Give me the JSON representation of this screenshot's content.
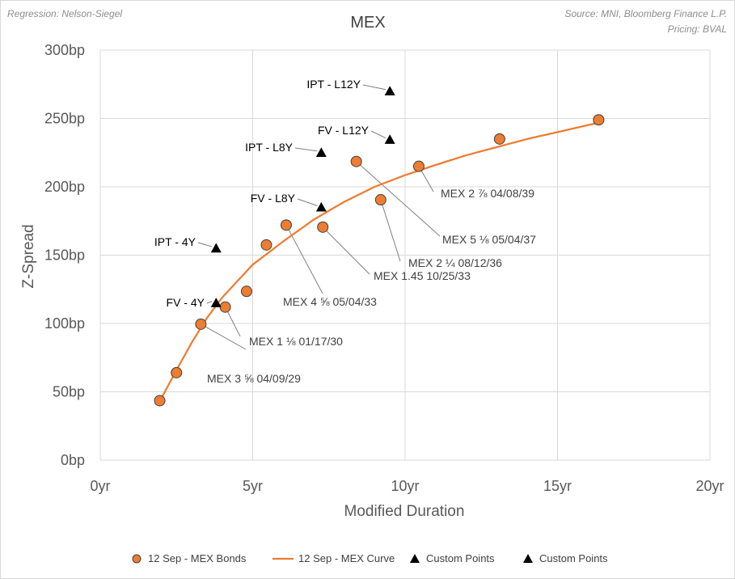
{
  "chart_data": {
    "type": "scatter",
    "title": "MEX",
    "notes": {
      "regression": "Regression: Nelson-Siegel",
      "source": "Source: MNI, Bloomberg Finance L.P.",
      "pricing": "Pricing: BVAL"
    },
    "xlabel": "Modified Duration",
    "ylabel": "Z-Spread",
    "xlim": [
      0,
      20
    ],
    "ylim": [
      0,
      300
    ],
    "x_ticks": [
      {
        "value": 0,
        "label": "0yr"
      },
      {
        "value": 5,
        "label": "5yr"
      },
      {
        "value": 10,
        "label": "10yr"
      },
      {
        "value": 15,
        "label": "15yr"
      },
      {
        "value": 20,
        "label": "20yr"
      }
    ],
    "y_ticks": [
      {
        "value": 0,
        "label": "0bp"
      },
      {
        "value": 50,
        "label": "50bp"
      },
      {
        "value": 100,
        "label": "100bp"
      },
      {
        "value": 150,
        "label": "150bp"
      },
      {
        "value": 200,
        "label": "200bp"
      },
      {
        "value": 250,
        "label": "250bp"
      },
      {
        "value": 300,
        "label": "300bp"
      }
    ],
    "grid": true,
    "colors": {
      "bond_fill": "#ED7D31",
      "bond_stroke": "#404040",
      "curve": "#ED7D31",
      "marker": "#000000",
      "grid": "#d9d9d9",
      "leader": "#7f7f7f"
    },
    "series": [
      {
        "name": "12 Sep - MEX Bonds",
        "kind": "scatter",
        "points": [
          {
            "x": 1.95,
            "y": 43.5
          },
          {
            "x": 2.5,
            "y": 64
          },
          {
            "x": 3.3,
            "y": 99.5,
            "label": "MEX 3 ⅝ 04/09/29"
          },
          {
            "x": 4.1,
            "y": 112,
            "label": "MEX 1 ⅛ 01/17/30"
          },
          {
            "x": 4.8,
            "y": 123.5
          },
          {
            "x": 5.45,
            "y": 157.5
          },
          {
            "x": 6.1,
            "y": 172,
            "label": "MEX 4 ⅝ 05/04/33"
          },
          {
            "x": 7.3,
            "y": 170.5,
            "label": "MEX 1.45 10/25/33"
          },
          {
            "x": 8.4,
            "y": 218.5,
            "label": "MEX 5 ⅛ 05/04/37"
          },
          {
            "x": 9.2,
            "y": 190.5,
            "label": "MEX 2 ¼ 08/12/36"
          },
          {
            "x": 10.45,
            "y": 215,
            "label": "MEX 2 ⅞ 04/08/39"
          },
          {
            "x": 13.1,
            "y": 235
          },
          {
            "x": 16.35,
            "y": 249
          }
        ]
      },
      {
        "name": "12 Sep - MEX Curve",
        "kind": "line",
        "model": "Nelson-Siegel",
        "points": [
          {
            "x": 1.95,
            "y": 43
          },
          {
            "x": 2.5,
            "y": 66
          },
          {
            "x": 3.0,
            "y": 86
          },
          {
            "x": 3.5,
            "y": 104
          },
          {
            "x": 4.0,
            "y": 119
          },
          {
            "x": 4.5,
            "y": 131
          },
          {
            "x": 5.0,
            "y": 143
          },
          {
            "x": 6.0,
            "y": 160
          },
          {
            "x": 7.0,
            "y": 176
          },
          {
            "x": 8.0,
            "y": 189
          },
          {
            "x": 9.0,
            "y": 200
          },
          {
            "x": 10.0,
            "y": 208.5
          },
          {
            "x": 11.0,
            "y": 216
          },
          {
            "x": 12.0,
            "y": 223
          },
          {
            "x": 13.0,
            "y": 229
          },
          {
            "x": 14.0,
            "y": 235
          },
          {
            "x": 15.0,
            "y": 240
          },
          {
            "x": 16.35,
            "y": 247
          }
        ]
      },
      {
        "name": "Custom Points",
        "kind": "triangle",
        "points": [
          {
            "x": 3.8,
            "y": 115,
            "label": "FV - 4Y"
          },
          {
            "x": 7.25,
            "y": 185,
            "label": "FV - L8Y"
          },
          {
            "x": 9.5,
            "y": 234.5,
            "label": "FV - L12Y"
          }
        ]
      },
      {
        "name": "Custom Points",
        "kind": "triangle",
        "points": [
          {
            "x": 3.8,
            "y": 155,
            "label": "IPT - 4Y"
          },
          {
            "x": 7.25,
            "y": 225,
            "label": "IPT - L8Y"
          },
          {
            "x": 9.5,
            "y": 270,
            "label": "IPT - L12Y"
          }
        ]
      }
    ],
    "legend": {
      "position": "bottom",
      "entries": [
        {
          "label": "12 Sep - MEX Bonds",
          "marker": "circle"
        },
        {
          "label": "12 Sep - MEX Curve",
          "marker": "line"
        },
        {
          "label": "Custom Points",
          "marker": "triangle"
        },
        {
          "label": "Custom Points",
          "marker": "triangle"
        }
      ]
    }
  }
}
